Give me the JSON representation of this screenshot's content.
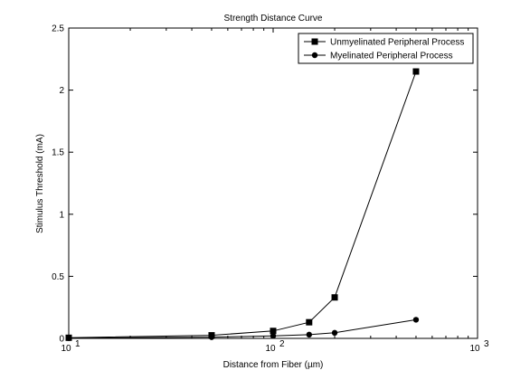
{
  "chart_data": {
    "type": "line",
    "title": "Strength Distance Curve",
    "xlabel": "Distance from Fiber (µm)",
    "ylabel": "Stimulus Threshold (mA)",
    "xscale": "log",
    "xlim": [
      10,
      1000
    ],
    "ylim": [
      0,
      2.5
    ],
    "xticks": [
      10,
      100,
      1000
    ],
    "xtick_labels": [
      {
        "base": "10",
        "exp": "1"
      },
      {
        "base": "10",
        "exp": "2"
      },
      {
        "base": "10",
        "exp": "3"
      }
    ],
    "yticks": [
      0,
      0.5,
      1,
      1.5,
      2,
      2.5
    ],
    "ytick_labels": [
      "0",
      "0.5",
      "1",
      "1.5",
      "2",
      "2.5"
    ],
    "grid": false,
    "legend_position": "top-right",
    "series": [
      {
        "name": "Unmyelinated Peripheral Process",
        "marker": "square",
        "color": "#000000",
        "x": [
          10,
          50,
          100,
          150,
          200,
          500
        ],
        "y": [
          0.005,
          0.025,
          0.06,
          0.13,
          0.33,
          2.15
        ]
      },
      {
        "name": "Myelinated Peripheral Process",
        "marker": "circle",
        "color": "#000000",
        "x": [
          10,
          50,
          100,
          150,
          200,
          500
        ],
        "y": [
          0.002,
          0.01,
          0.02,
          0.03,
          0.045,
          0.15
        ]
      }
    ]
  }
}
